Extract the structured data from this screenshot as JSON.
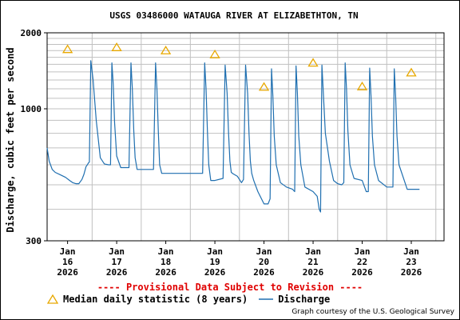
{
  "colors": {
    "median": "#e8a800",
    "discharge": "#1f6fb0",
    "provisional": "#e00000",
    "grid": "#c0c0c0"
  },
  "chart_data": {
    "type": "line",
    "title": "USGS 03486000 WATAUGA RIVER AT ELIZABETHTON, TN",
    "ylabel": "Discharge, cubic feet per second",
    "yscale": "log",
    "ylim": [
      300,
      2000
    ],
    "yticks": [
      300,
      1000,
      2000
    ],
    "xlim": [
      "2026-01-15T14:00",
      "2026-01-23T16:00"
    ],
    "xticks": [
      {
        "date": "2026-01-16",
        "lines": [
          "Jan",
          "16",
          "2026"
        ]
      },
      {
        "date": "2026-01-17",
        "lines": [
          "Jan",
          "17",
          "2026"
        ]
      },
      {
        "date": "2026-01-18",
        "lines": [
          "Jan",
          "18",
          "2026"
        ]
      },
      {
        "date": "2026-01-19",
        "lines": [
          "Jan",
          "19",
          "2026"
        ]
      },
      {
        "date": "2026-01-20",
        "lines": [
          "Jan",
          "20",
          "2026"
        ]
      },
      {
        "date": "2026-01-21",
        "lines": [
          "Jan",
          "21",
          "2026"
        ]
      },
      {
        "date": "2026-01-22",
        "lines": [
          "Jan",
          "22",
          "2026"
        ]
      },
      {
        "date": "2026-01-23",
        "lines": [
          "Jan",
          "23",
          "2026"
        ]
      }
    ],
    "grid": true,
    "series": [
      {
        "name": "Median daily statistic (8 years)",
        "type": "scatter",
        "x": [
          "2026-01-16T00:00",
          "2026-01-17T00:00",
          "2026-01-18T00:00",
          "2026-01-19T00:00",
          "2026-01-20T00:00",
          "2026-01-21T00:00",
          "2026-01-22T00:00",
          "2026-01-23T00:00"
        ],
        "y": [
          1720,
          1750,
          1700,
          1640,
          1220,
          1520,
          1225,
          1390
        ]
      },
      {
        "name": "Discharge",
        "type": "line",
        "x": [
          "2026-01-15T14:00",
          "2026-01-15T15:00",
          "2026-01-15T16:30",
          "2026-01-15T18:00",
          "2026-01-15T20:00",
          "2026-01-15T23:00",
          "2026-01-16T01:00",
          "2026-01-16T02:30",
          "2026-01-16T04:00",
          "2026-01-16T05:30",
          "2026-01-16T07:00",
          "2026-01-16T08:00",
          "2026-01-16T09:00",
          "2026-01-16T09:40",
          "2026-01-16T10:10",
          "2026-01-16T10:40",
          "2026-01-16T11:20",
          "2026-01-16T12:30",
          "2026-01-16T14:00",
          "2026-01-16T16:00",
          "2026-01-16T18:00",
          "2026-01-16T20:00",
          "2026-01-16T21:00",
          "2026-01-16T21:40",
          "2026-01-16T22:20",
          "2026-01-16T23:00",
          "2026-01-17T00:00",
          "2026-01-17T02:00",
          "2026-01-17T03:00",
          "2026-01-17T04:00",
          "2026-01-17T06:00",
          "2026-01-17T07:00",
          "2026-01-17T07:40",
          "2026-01-17T08:20",
          "2026-01-17T09:00",
          "2026-01-17T10:00",
          "2026-01-17T12:00",
          "2026-01-17T18:00",
          "2026-01-17T19:00",
          "2026-01-17T19:40",
          "2026-01-17T20:20",
          "2026-01-17T21:00",
          "2026-01-17T22:00",
          "2026-01-18T00:00",
          "2026-01-18T06:00",
          "2026-01-18T12:00",
          "2026-01-18T18:00",
          "2026-01-18T19:00",
          "2026-01-18T19:40",
          "2026-01-18T20:20",
          "2026-01-18T21:00",
          "2026-01-18T22:00",
          "2026-01-19T00:00",
          "2026-01-19T04:00",
          "2026-01-19T05:00",
          "2026-01-19T06:00",
          "2026-01-19T06:40",
          "2026-01-19T07:20",
          "2026-01-19T08:00",
          "2026-01-19T09:00",
          "2026-01-19T11:00",
          "2026-01-19T13:00",
          "2026-01-19T14:00",
          "2026-01-19T15:00",
          "2026-01-19T16:00",
          "2026-01-19T16:40",
          "2026-01-19T17:20",
          "2026-01-19T18:00",
          "2026-01-19T19:00",
          "2026-01-19T21:00",
          "2026-01-20T00:00",
          "2026-01-20T02:00",
          "2026-01-20T03:00",
          "2026-01-20T03:40",
          "2026-01-20T04:20",
          "2026-01-20T05:00",
          "2026-01-20T06:00",
          "2026-01-20T08:00",
          "2026-01-20T11:00",
          "2026-01-20T14:00",
          "2026-01-20T15:00",
          "2026-01-20T15:40",
          "2026-01-20T16:20",
          "2026-01-20T17:00",
          "2026-01-20T18:00",
          "2026-01-20T20:00",
          "2026-01-21T00:00",
          "2026-01-21T02:00",
          "2026-01-21T03:00",
          "2026-01-21T03:40",
          "2026-01-21T04:20",
          "2026-01-21T05:00",
          "2026-01-21T06:00",
          "2026-01-21T08:00",
          "2026-01-21T10:00",
          "2026-01-21T12:00",
          "2026-01-21T14:00",
          "2026-01-21T15:00",
          "2026-01-21T15:40",
          "2026-01-21T16:20",
          "2026-01-21T17:00",
          "2026-01-21T18:00",
          "2026-01-21T20:00",
          "2026-01-22T00:00",
          "2026-01-22T02:00",
          "2026-01-22T03:00",
          "2026-01-22T03:40",
          "2026-01-22T04:20",
          "2026-01-22T05:00",
          "2026-01-22T06:00",
          "2026-01-22T08:00",
          "2026-01-22T12:00",
          "2026-01-22T14:00",
          "2026-01-22T15:00",
          "2026-01-22T15:40",
          "2026-01-22T16:20",
          "2026-01-22T17:00",
          "2026-01-22T18:00",
          "2026-01-22T22:00",
          "2026-01-23T00:00",
          "2026-01-23T00:30",
          "2026-01-23T04:00"
        ],
        "y": [
          700,
          620,
          575,
          560,
          550,
          535,
          520,
          510,
          505,
          505,
          525,
          550,
          590,
          600,
          610,
          615,
          1550,
          1300,
          900,
          640,
          605,
          600,
          600,
          1520,
          1250,
          880,
          650,
          585,
          585,
          585,
          585,
          1520,
          1200,
          820,
          640,
          575,
          575,
          575,
          1520,
          1200,
          820,
          600,
          555,
          555,
          555,
          555,
          555,
          1520,
          1200,
          820,
          600,
          520,
          520,
          530,
          1490,
          1150,
          800,
          620,
          560,
          552,
          540,
          510,
          525,
          1490,
          1150,
          800,
          620,
          555,
          520,
          470,
          420,
          420,
          440,
          1440,
          1120,
          780,
          600,
          510,
          490,
          480,
          470,
          1480,
          1150,
          780,
          600,
          490,
          470,
          450,
          400,
          390,
          1490,
          1150,
          800,
          620,
          520,
          505,
          500,
          510,
          1520,
          1200,
          820,
          600,
          530,
          520,
          470,
          470,
          1450,
          1120,
          780,
          600,
          520,
          490,
          490,
          490,
          1440,
          1120,
          780,
          600,
          480,
          480,
          480,
          480
        ]
      }
    ]
  },
  "legend": {
    "median_label": "Median daily statistic (8 years)",
    "discharge_label": "Discharge"
  },
  "footer": {
    "provisional": "---- Provisional Data Subject to Revision ----",
    "credit": "Graph courtesy of the U.S. Geological Survey"
  }
}
